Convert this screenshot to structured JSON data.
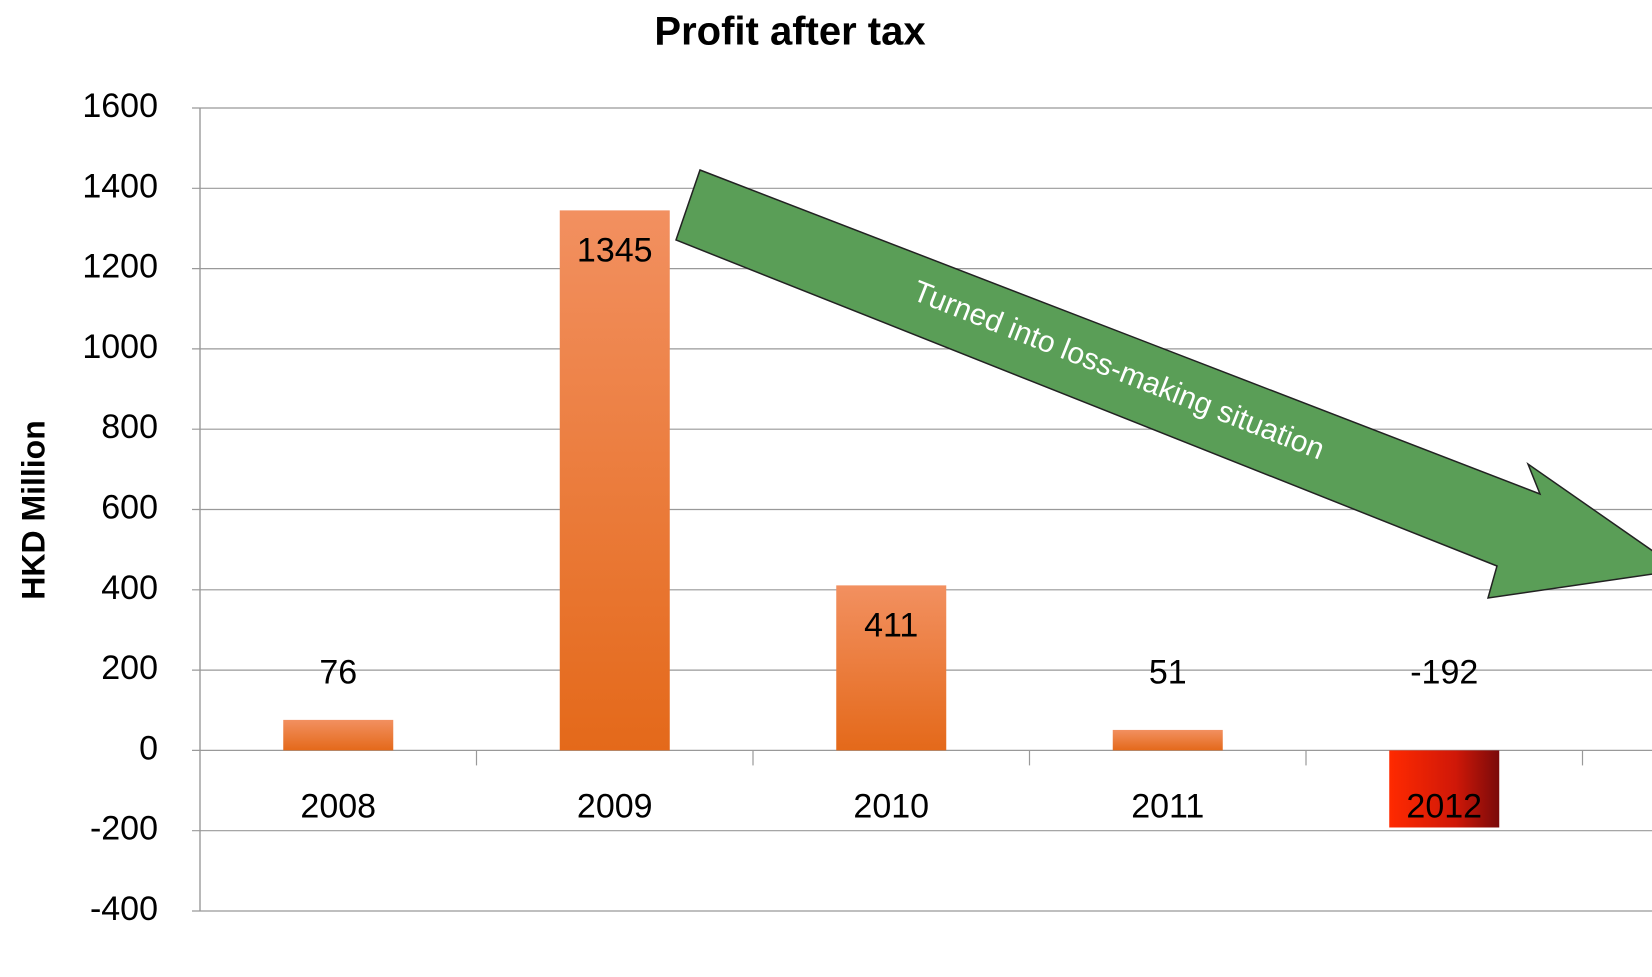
{
  "chart_data": {
    "type": "bar",
    "title": "Profit after tax",
    "y_label": "HKD Million",
    "categories": [
      "2008",
      "2009",
      "2010",
      "2011",
      "2012"
    ],
    "values": [
      76,
      1345,
      411,
      51,
      -192
    ],
    "colors": [
      "#ef7b2c",
      "#ef7b2c",
      "#ef7b2c",
      "#ef7b2c",
      "#e8200a"
    ],
    "ylim": [
      -400,
      1600
    ],
    "yticks": [
      -400,
      -200,
      0,
      200,
      400,
      600,
      800,
      1000,
      1200,
      1400,
      1600
    ],
    "grid": true,
    "annotation": "Turned into loss-making situation"
  }
}
